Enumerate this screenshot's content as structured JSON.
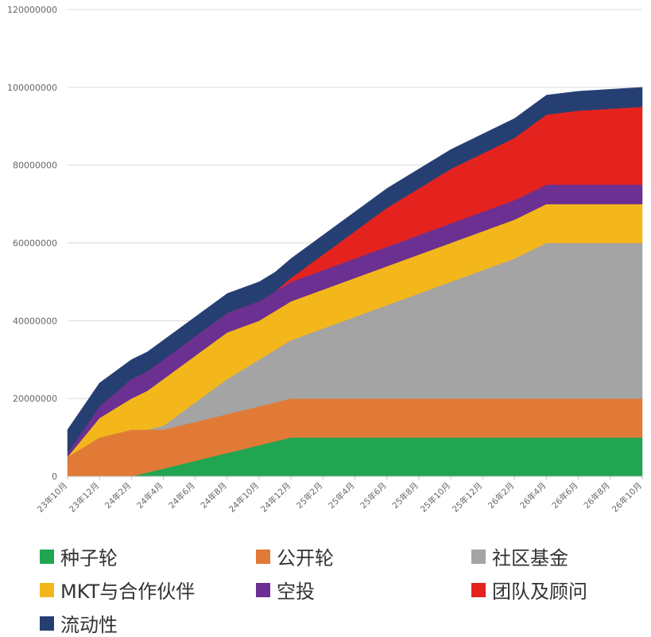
{
  "chart_data": {
    "type": "area",
    "stacked": true,
    "x": [
      "23年10月",
      "23年11月",
      "23年12月",
      "24年1月",
      "24年2月",
      "24年3月",
      "24年4月",
      "24年5月",
      "24年6月",
      "24年7月",
      "24年8月",
      "24年9月",
      "24年10月",
      "24年11月",
      "24年12月",
      "25年1月",
      "25年2月",
      "25年3月",
      "25年4月",
      "25年5月",
      "25年6月",
      "25年7月",
      "25年8月",
      "25年9月",
      "25年10月",
      "25年11月",
      "25年12月",
      "26年1月",
      "26年2月",
      "26年3月",
      "26年4月",
      "26年5月",
      "26年6月",
      "26年7月",
      "26年8月",
      "26年9月",
      "26年10月"
    ],
    "x_tick_labels": [
      "23年10月",
      "23年12月",
      "24年2月",
      "24年4月",
      "24年6月",
      "24年8月",
      "24年10月",
      "24年12月",
      "25年2月",
      "25年4月",
      "25年6月",
      "25年8月",
      "25年10月",
      "25年12月",
      "26年2月",
      "26年4月",
      "26年6月",
      "26年8月",
      "26年10月"
    ],
    "y_tick_labels": [
      "0",
      "20000000",
      "40000000",
      "60000000",
      "80000000",
      "100000000",
      "120000000"
    ],
    "ylim": [
      0,
      120000000
    ],
    "grid": true,
    "legend_position": "bottom",
    "series": [
      {
        "name": "种子轮",
        "color": "#21a551",
        "values": [
          0,
          0,
          0,
          0,
          0,
          1000000,
          2000000,
          3000000,
          4000000,
          5000000,
          6000000,
          7000000,
          8000000,
          9000000,
          10000000,
          10000000,
          10000000,
          10000000,
          10000000,
          10000000,
          10000000,
          10000000,
          10000000,
          10000000,
          10000000,
          10000000,
          10000000,
          10000000,
          10000000,
          10000000,
          10000000,
          10000000,
          10000000,
          10000000,
          10000000,
          10000000,
          10000000
        ]
      },
      {
        "name": "公开轮",
        "color": "#e17a36",
        "values": [
          5000000,
          7500000,
          10000000,
          11000000,
          12000000,
          11000000,
          10000000,
          10000000,
          10000000,
          10000000,
          10000000,
          10000000,
          10000000,
          10000000,
          10000000,
          10000000,
          10000000,
          10000000,
          10000000,
          10000000,
          10000000,
          10000000,
          10000000,
          10000000,
          10000000,
          10000000,
          10000000,
          10000000,
          10000000,
          10000000,
          10000000,
          10000000,
          10000000,
          10000000,
          10000000,
          10000000,
          10000000
        ]
      },
      {
        "name": "社区基金",
        "color": "#a4a4a4",
        "values": [
          0,
          0,
          0,
          0,
          0,
          0,
          1000000,
          3000000,
          5000000,
          7000000,
          9000000,
          10500000,
          12000000,
          13500000,
          15000000,
          16500000,
          18000000,
          19500000,
          21000000,
          22500000,
          24000000,
          25500000,
          27000000,
          28500000,
          30000000,
          31500000,
          33000000,
          34500000,
          36000000,
          38000000,
          40000000,
          40000000,
          40000000,
          40000000,
          40000000,
          40000000,
          40000000
        ]
      },
      {
        "name": "MKT与合作伙伴",
        "color": "#f4b71b",
        "values": [
          0,
          2500000,
          5000000,
          6500000,
          8000000,
          10000000,
          12000000,
          12000000,
          12000000,
          12000000,
          12000000,
          11000000,
          10000000,
          10000000,
          10000000,
          10000000,
          10000000,
          10000000,
          10000000,
          10000000,
          10000000,
          10000000,
          10000000,
          10000000,
          10000000,
          10000000,
          10000000,
          10000000,
          10000000,
          10000000,
          10000000,
          10000000,
          10000000,
          10000000,
          10000000,
          10000000,
          10000000
        ]
      },
      {
        "name": "空投",
        "color": "#6b3091",
        "values": [
          1000000,
          2000000,
          3000000,
          4000000,
          5000000,
          5000000,
          5000000,
          5000000,
          5000000,
          5000000,
          5000000,
          5000000,
          5000000,
          5000000,
          5000000,
          5000000,
          5000000,
          5000000,
          5000000,
          5000000,
          5000000,
          5000000,
          5000000,
          5000000,
          5000000,
          5000000,
          5000000,
          5000000,
          5000000,
          5000000,
          5000000,
          5000000,
          5000000,
          5000000,
          5000000,
          5000000,
          5000000
        ]
      },
      {
        "name": "团队及顾问",
        "color": "#e4231e",
        "values": [
          0,
          0,
          0,
          0,
          0,
          0,
          0,
          0,
          0,
          0,
          0,
          0,
          0,
          0,
          1000000,
          2500000,
          4000000,
          5500000,
          7000000,
          8500000,
          10000000,
          11000000,
          12000000,
          13000000,
          14000000,
          14500000,
          15000000,
          15500000,
          16000000,
          17000000,
          18000000,
          18500000,
          19000000,
          19250000,
          19500000,
          19750000,
          20000000
        ]
      },
      {
        "name": "流动性",
        "color": "#263f73",
        "values": [
          6000000,
          6000000,
          6000000,
          5500000,
          5000000,
          5000000,
          5000000,
          5000000,
          5000000,
          5000000,
          5000000,
          5000000,
          5000000,
          5000000,
          5000000,
          5000000,
          5000000,
          5000000,
          5000000,
          5000000,
          5000000,
          5000000,
          5000000,
          5000000,
          5000000,
          5000000,
          5000000,
          5000000,
          5000000,
          5000000,
          5000000,
          5000000,
          5000000,
          5000000,
          5000000,
          5000000,
          5000000
        ]
      }
    ]
  }
}
